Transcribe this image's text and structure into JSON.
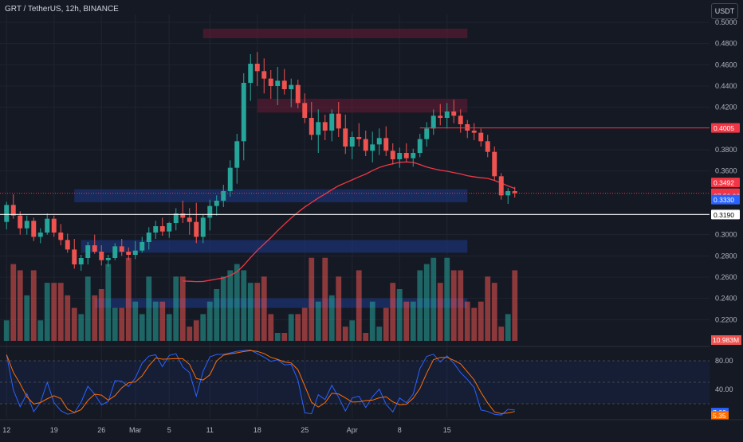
{
  "header": {
    "title": "GRT / TetherUS, 12h, BINANCE",
    "currency_button": "USDT"
  },
  "colors": {
    "background": "#151924",
    "bullish": "#26a69a",
    "bearish": "#ef5350",
    "moving_average": "#f23645",
    "zone_resistance": "#6a1b35",
    "zone_support": "#1e3a8a",
    "stoch_k": "#2962ff",
    "stoch_d": "#ff6d00"
  },
  "price_axis": {
    "ticks": [
      "0.5000",
      "0.4800",
      "0.4600",
      "0.4400",
      "0.4200",
      "0.3800",
      "0.3600",
      "0.3000",
      "0.2800",
      "0.2600",
      "0.2400",
      "0.2200"
    ],
    "tick_values": [
      0.5,
      0.48,
      0.46,
      0.44,
      0.42,
      0.38,
      0.36,
      0.3,
      0.28,
      0.26,
      0.24,
      0.22
    ],
    "ylim": [
      0.2,
      0.5
    ]
  },
  "price_labels": [
    {
      "text": "0.4005",
      "value": 0.4005,
      "color": "#f23645"
    },
    {
      "text": "0.3492",
      "value": 0.3492,
      "color": "#f23645"
    },
    {
      "text": "0.3390",
      "value": 0.339,
      "color": "#f23645"
    },
    {
      "text": "07:56:06",
      "value": 0.3365,
      "color": "#f23645"
    },
    {
      "text": "0.3330",
      "value": 0.333,
      "color": "#2962ff"
    },
    {
      "text": "0.3190",
      "value": 0.319,
      "color": "#ffffff"
    }
  ],
  "volume_label": "10.983M",
  "time_axis": {
    "labels": [
      "12",
      "19",
      "26",
      "Mar",
      "5",
      "11",
      "18",
      "25",
      "Apr",
      "8",
      "15"
    ],
    "positions": [
      0,
      7,
      14,
      19,
      24,
      30,
      37,
      44,
      51,
      58,
      65
    ]
  },
  "oscillator_axis": {
    "ticks": [
      "80.00",
      "40.00"
    ],
    "tick_values": [
      80,
      40
    ],
    "labels": [
      {
        "text": "7.66",
        "value": 7.66,
        "color": "#2962ff"
      },
      {
        "text": "5.35",
        "value": 5.35,
        "color": "#ff6d00"
      }
    ]
  },
  "zones": [
    {
      "type": "resistance",
      "x0": 29,
      "x1": 68,
      "low": 0.485,
      "high": 0.494
    },
    {
      "type": "resistance",
      "x0": 37,
      "x1": 68,
      "low": 0.415,
      "high": 0.428
    },
    {
      "type": "support",
      "x0": 10,
      "x1": 68,
      "low": 0.3305,
      "high": 0.3428
    },
    {
      "type": "support",
      "x0": 11,
      "x1": 68,
      "low": 0.283,
      "high": 0.295
    },
    {
      "type": "support",
      "x0": 13,
      "x1": 68,
      "low": 0.231,
      "high": 0.24
    }
  ],
  "chart_data": {
    "type": "candlestick",
    "title": "GRT / TetherUS, 12h, BINANCE",
    "ylim": [
      0.2,
      0.5
    ],
    "horizontal_lines": [
      {
        "value": 0.339,
        "style": "dotted",
        "color": "#f23645"
      },
      {
        "value": 0.319,
        "style": "solid",
        "color": "#ffffff"
      },
      {
        "value": 0.4005,
        "style": "solid",
        "color": "#f23645",
        "from": 61
      }
    ],
    "candles": [
      [
        0.312,
        0.331,
        0.305,
        0.328
      ],
      [
        0.328,
        0.338,
        0.315,
        0.318
      ],
      [
        0.318,
        0.322,
        0.3,
        0.306
      ],
      [
        0.306,
        0.318,
        0.3,
        0.313
      ],
      [
        0.313,
        0.316,
        0.294,
        0.298
      ],
      [
        0.298,
        0.306,
        0.292,
        0.302
      ],
      [
        0.302,
        0.32,
        0.3,
        0.315
      ],
      [
        0.315,
        0.318,
        0.298,
        0.302
      ],
      [
        0.302,
        0.31,
        0.29,
        0.295
      ],
      [
        0.295,
        0.301,
        0.283,
        0.286
      ],
      [
        0.286,
        0.296,
        0.268,
        0.272
      ],
      [
        0.272,
        0.281,
        0.266,
        0.278
      ],
      [
        0.278,
        0.293,
        0.272,
        0.29
      ],
      [
        0.29,
        0.3,
        0.282,
        0.284
      ],
      [
        0.284,
        0.29,
        0.271,
        0.276
      ],
      [
        0.276,
        0.281,
        0.27,
        0.278
      ],
      [
        0.278,
        0.292,
        0.276,
        0.289
      ],
      [
        0.289,
        0.296,
        0.28,
        0.284
      ],
      [
        0.284,
        0.288,
        0.276,
        0.281
      ],
      [
        0.281,
        0.294,
        0.277,
        0.285
      ],
      [
        0.285,
        0.298,
        0.283,
        0.293
      ],
      [
        0.293,
        0.307,
        0.286,
        0.302
      ],
      [
        0.302,
        0.313,
        0.296,
        0.308
      ],
      [
        0.308,
        0.316,
        0.299,
        0.303
      ],
      [
        0.303,
        0.312,
        0.297,
        0.311
      ],
      [
        0.311,
        0.325,
        0.304,
        0.32
      ],
      [
        0.32,
        0.332,
        0.311,
        0.316
      ],
      [
        0.316,
        0.325,
        0.3,
        0.312
      ],
      [
        0.312,
        0.33,
        0.292,
        0.298
      ],
      [
        0.298,
        0.319,
        0.292,
        0.316
      ],
      [
        0.316,
        0.333,
        0.304,
        0.327
      ],
      [
        0.327,
        0.337,
        0.318,
        0.332
      ],
      [
        0.332,
        0.347,
        0.326,
        0.341
      ],
      [
        0.341,
        0.37,
        0.336,
        0.363
      ],
      [
        0.363,
        0.395,
        0.348,
        0.388
      ],
      [
        0.388,
        0.452,
        0.37,
        0.443
      ],
      [
        0.443,
        0.47,
        0.426,
        0.461
      ],
      [
        0.461,
        0.472,
        0.44,
        0.454
      ],
      [
        0.454,
        0.466,
        0.433,
        0.447
      ],
      [
        0.447,
        0.455,
        0.428,
        0.44
      ],
      [
        0.44,
        0.458,
        0.422,
        0.445
      ],
      [
        0.445,
        0.456,
        0.432,
        0.437
      ],
      [
        0.437,
        0.447,
        0.42,
        0.441
      ],
      [
        0.441,
        0.446,
        0.419,
        0.424
      ],
      [
        0.424,
        0.433,
        0.405,
        0.41
      ],
      [
        0.41,
        0.425,
        0.389,
        0.394
      ],
      [
        0.394,
        0.418,
        0.377,
        0.406
      ],
      [
        0.406,
        0.413,
        0.389,
        0.398
      ],
      [
        0.398,
        0.418,
        0.388,
        0.414
      ],
      [
        0.414,
        0.425,
        0.392,
        0.4
      ],
      [
        0.4,
        0.413,
        0.376,
        0.383
      ],
      [
        0.383,
        0.397,
        0.371,
        0.392
      ],
      [
        0.392,
        0.405,
        0.383,
        0.39
      ],
      [
        0.39,
        0.398,
        0.374,
        0.379
      ],
      [
        0.379,
        0.397,
        0.368,
        0.385
      ],
      [
        0.385,
        0.4,
        0.375,
        0.391
      ],
      [
        0.391,
        0.402,
        0.374,
        0.379
      ],
      [
        0.379,
        0.386,
        0.366,
        0.371
      ],
      [
        0.371,
        0.382,
        0.363,
        0.377
      ],
      [
        0.377,
        0.386,
        0.369,
        0.372
      ],
      [
        0.372,
        0.381,
        0.364,
        0.377
      ],
      [
        0.377,
        0.395,
        0.373,
        0.39
      ],
      [
        0.39,
        0.406,
        0.383,
        0.4
      ],
      [
        0.4,
        0.418,
        0.394,
        0.412
      ],
      [
        0.412,
        0.423,
        0.403,
        0.41
      ],
      [
        0.41,
        0.424,
        0.4,
        0.416
      ],
      [
        0.416,
        0.427,
        0.405,
        0.412
      ],
      [
        0.412,
        0.418,
        0.396,
        0.404
      ],
      [
        0.404,
        0.408,
        0.391,
        0.398
      ],
      [
        0.398,
        0.405,
        0.389,
        0.396
      ],
      [
        0.396,
        0.4,
        0.383,
        0.388
      ],
      [
        0.388,
        0.394,
        0.373,
        0.378
      ],
      [
        0.378,
        0.383,
        0.351,
        0.355
      ],
      [
        0.355,
        0.358,
        0.333,
        0.337
      ],
      [
        0.337,
        0.344,
        0.329,
        0.341
      ],
      [
        0.341,
        0.345,
        0.335,
        0.339
      ]
    ]
  }
}
